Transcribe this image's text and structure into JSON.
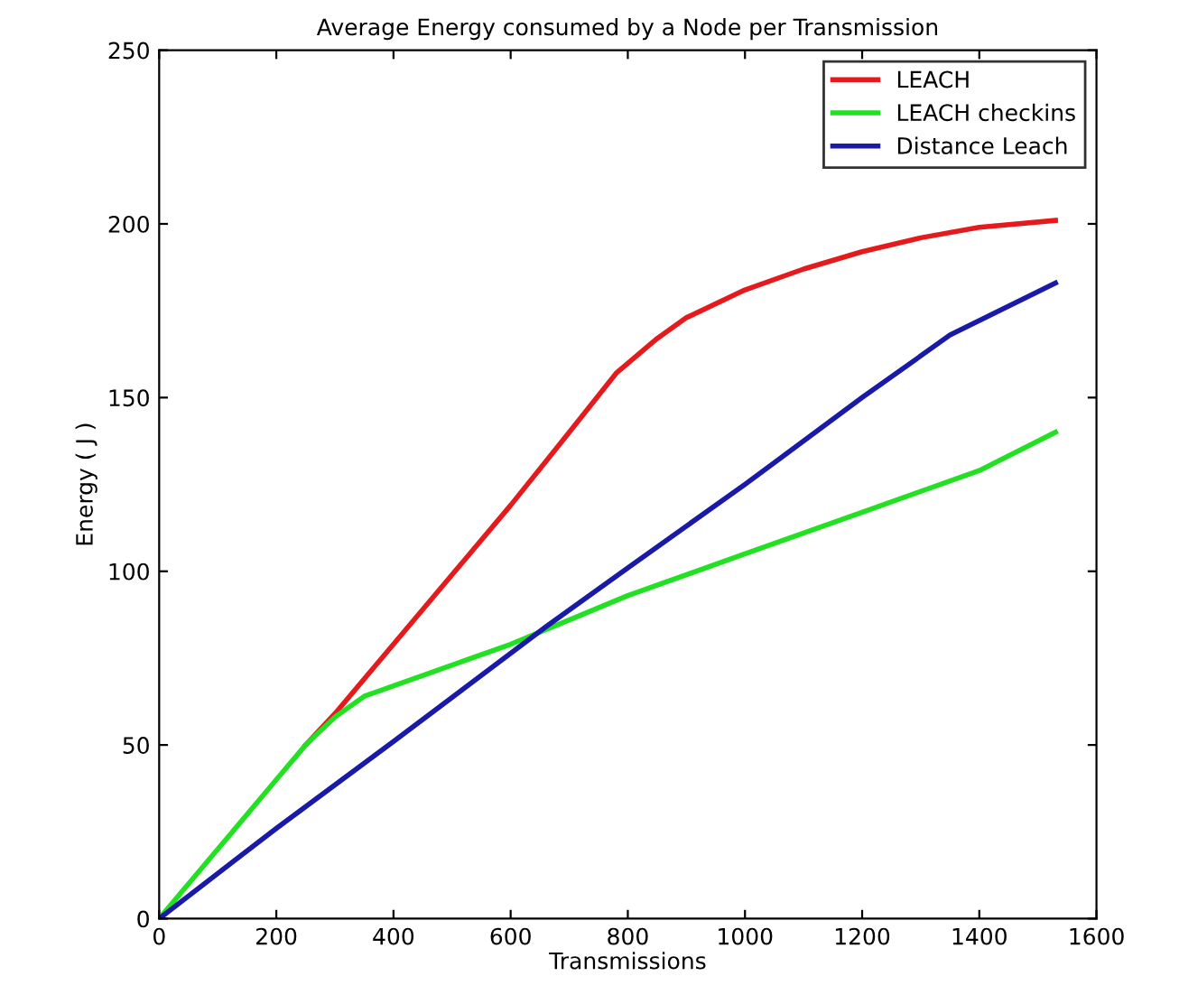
{
  "chart_data": {
    "type": "line",
    "title": "Average Energy consumed by a Node per Transmission",
    "xlabel": "Transmissions",
    "ylabel": "Energy ( J )",
    "xlim": [
      0,
      1600
    ],
    "ylim": [
      0,
      250
    ],
    "xticks": [
      0,
      200,
      400,
      600,
      800,
      1000,
      1200,
      1400,
      1600
    ],
    "yticks": [
      0,
      50,
      100,
      150,
      200,
      250
    ],
    "grid": false,
    "legend": "top right",
    "marker": "none",
    "line_style": "solid",
    "series": [
      {
        "name": "LEACH",
        "color": "#e41a1c",
        "x": [
          250,
          300,
          400,
          500,
          600,
          700,
          780,
          850,
          900,
          1000,
          1100,
          1200,
          1300,
          1400,
          1530
        ],
        "values": [
          50,
          59,
          79,
          99,
          119,
          140,
          157,
          167,
          173,
          181,
          187,
          192,
          196,
          199,
          201
        ]
      },
      {
        "name": "LEACH checkins",
        "color": "#22e022",
        "x": [
          0,
          100,
          200,
          250,
          300,
          350,
          400,
          500,
          600,
          700,
          800,
          1000,
          1200,
          1400,
          1530
        ],
        "values": [
          0,
          20,
          40,
          50,
          58,
          64,
          67,
          73,
          79,
          86,
          93,
          105,
          117,
          129,
          140
        ]
      },
      {
        "name": "Distance Leach",
        "color": "#1a1aa8",
        "x": [
          0,
          200,
          400,
          660,
          800,
          1000,
          1200,
          1350,
          1530
        ],
        "values": [
          0,
          26,
          51,
          84,
          101,
          125,
          150,
          168,
          183
        ]
      }
    ]
  }
}
